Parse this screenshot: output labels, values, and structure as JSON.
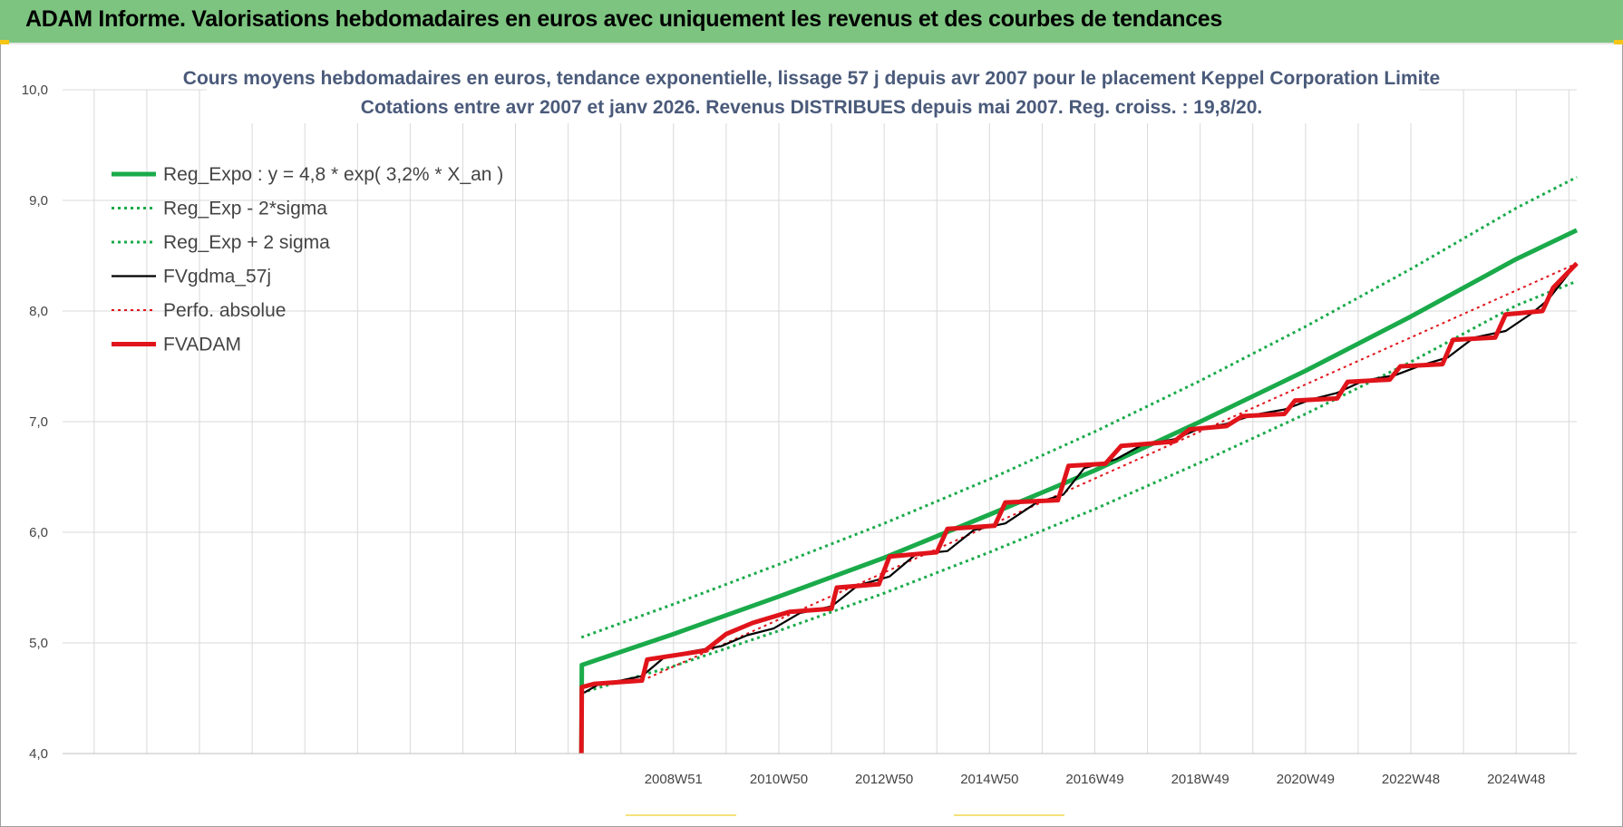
{
  "header": {
    "title": "ADAM Informe. Valorisations hebdomadaires en euros avec uniquement les revenus et des courbes de tendances"
  },
  "colors": {
    "header_bg": "#7cc47f",
    "trend": "#1aaa4a",
    "sigma": "#1aaa4a",
    "smoothed": "#000000",
    "perf": "#e0141a",
    "fvadam": "#e0141a",
    "title_text": "#4a5a7a",
    "grid": "#d9d9d9"
  },
  "chart_data": {
    "type": "line",
    "title_lines": [
      "Cours moyens hebdomadaires en euros, tendance exponentielle, lissage 57 j depuis avr 2007 pour le placement Keppel Corporation Limite",
      "Cotations entre avr 2007 et janv 2026. Revenus DISTRIBUES depuis mai 2007. Reg. croiss. : 19,8/20."
    ],
    "xlabel": "",
    "ylabel": "",
    "ylim": [
      4.0,
      10.0
    ],
    "y_ticks": [
      "4,0",
      "5,0",
      "6,0",
      "7,0",
      "8,0",
      "9,0",
      "10,0"
    ],
    "x_ticks": [
      "2008W51",
      "2010W50",
      "2012W50",
      "2014W50",
      "2016W49",
      "2018W49",
      "2020W49",
      "2022W48",
      "2024W48"
    ],
    "xlim": [
      1997.4,
      2026.15
    ],
    "grid": true,
    "legend_position": "top-left",
    "series": [
      {
        "name": "Reg_Expo : y = 4,8 * exp( 3,2% *  X_an )",
        "style": "solid-thick",
        "color": "#1aaa4a",
        "points": [
          [
            2007.25,
            4.0
          ],
          [
            2007.26,
            4.8
          ],
          [
            2009,
            5.08
          ],
          [
            2011,
            5.42
          ],
          [
            2013,
            5.77
          ],
          [
            2015,
            6.16
          ],
          [
            2017,
            6.56
          ],
          [
            2019,
            7.0
          ],
          [
            2021,
            7.46
          ],
          [
            2023,
            7.95
          ],
          [
            2025,
            8.47
          ],
          [
            2026.15,
            8.73
          ]
        ]
      },
      {
        "name": "Reg_Exp - 2*sigma",
        "style": "dotted",
        "color": "#1aaa4a",
        "points": [
          [
            2007.25,
            4.55
          ],
          [
            2009,
            4.79
          ],
          [
            2011,
            5.11
          ],
          [
            2013,
            5.45
          ],
          [
            2015,
            5.82
          ],
          [
            2017,
            6.21
          ],
          [
            2019,
            6.63
          ],
          [
            2021,
            7.07
          ],
          [
            2023,
            7.54
          ],
          [
            2025,
            8.05
          ],
          [
            2026.15,
            8.27
          ]
        ]
      },
      {
        "name": "Reg_Exp + 2 sigma",
        "style": "dotted",
        "color": "#1aaa4a",
        "points": [
          [
            2007.25,
            5.05
          ],
          [
            2009,
            5.35
          ],
          [
            2011,
            5.71
          ],
          [
            2013,
            6.08
          ],
          [
            2015,
            6.48
          ],
          [
            2017,
            6.91
          ],
          [
            2019,
            7.37
          ],
          [
            2021,
            7.86
          ],
          [
            2023,
            8.38
          ],
          [
            2025,
            8.93
          ],
          [
            2026.15,
            9.21
          ]
        ]
      },
      {
        "name": "FVgdma_57j",
        "style": "solid-thin",
        "color": "#000000",
        "points": [
          [
            2007.3,
            4.55
          ],
          [
            2007.6,
            4.63
          ],
          [
            2008.0,
            4.66
          ],
          [
            2008.4,
            4.7
          ],
          [
            2008.8,
            4.86
          ],
          [
            2009.3,
            4.92
          ],
          [
            2009.9,
            4.97
          ],
          [
            2010.4,
            5.07
          ],
          [
            2010.9,
            5.13
          ],
          [
            2011.4,
            5.27
          ],
          [
            2012.0,
            5.33
          ],
          [
            2012.5,
            5.52
          ],
          [
            2013.1,
            5.6
          ],
          [
            2013.6,
            5.8
          ],
          [
            2014.2,
            5.83
          ],
          [
            2014.7,
            6.02
          ],
          [
            2015.3,
            6.08
          ],
          [
            2015.9,
            6.27
          ],
          [
            2016.4,
            6.34
          ],
          [
            2016.8,
            6.58
          ],
          [
            2017.4,
            6.66
          ],
          [
            2017.9,
            6.79
          ],
          [
            2018.5,
            6.84
          ],
          [
            2019.0,
            6.94
          ],
          [
            2019.5,
            6.98
          ],
          [
            2020.0,
            7.06
          ],
          [
            2020.6,
            7.11
          ],
          [
            2021.1,
            7.2
          ],
          [
            2021.6,
            7.26
          ],
          [
            2022.1,
            7.37
          ],
          [
            2022.7,
            7.42
          ],
          [
            2023.2,
            7.51
          ],
          [
            2023.7,
            7.58
          ],
          [
            2024.2,
            7.76
          ],
          [
            2024.8,
            7.82
          ],
          [
            2025.3,
            7.98
          ],
          [
            2025.6,
            8.1
          ],
          [
            2026.15,
            8.43
          ]
        ]
      },
      {
        "name": "Perfo. absolue",
        "style": "dotted",
        "color": "#e0141a",
        "points": [
          [
            2007.25,
            4.0
          ],
          [
            2007.26,
            4.6
          ],
          [
            2008.5,
            4.68
          ],
          [
            2026.15,
            8.43
          ]
        ]
      },
      {
        "name": "FVADAM",
        "style": "solid-thick",
        "color": "#e0141a",
        "points": [
          [
            2007.25,
            4.0
          ],
          [
            2007.26,
            4.6
          ],
          [
            2007.5,
            4.63
          ],
          [
            2008.4,
            4.66
          ],
          [
            2008.5,
            4.85
          ],
          [
            2009.6,
            4.93
          ],
          [
            2010.0,
            5.08
          ],
          [
            2010.5,
            5.18
          ],
          [
            2011.2,
            5.28
          ],
          [
            2012.0,
            5.31
          ],
          [
            2012.1,
            5.5
          ],
          [
            2012.9,
            5.53
          ],
          [
            2013.1,
            5.78
          ],
          [
            2014.0,
            5.82
          ],
          [
            2014.2,
            6.03
          ],
          [
            2015.1,
            6.06
          ],
          [
            2015.3,
            6.27
          ],
          [
            2016.3,
            6.29
          ],
          [
            2016.5,
            6.6
          ],
          [
            2017.2,
            6.62
          ],
          [
            2017.5,
            6.78
          ],
          [
            2018.5,
            6.82
          ],
          [
            2018.8,
            6.93
          ],
          [
            2019.5,
            6.96
          ],
          [
            2019.8,
            7.05
          ],
          [
            2020.6,
            7.07
          ],
          [
            2020.8,
            7.19
          ],
          [
            2021.6,
            7.21
          ],
          [
            2021.8,
            7.36
          ],
          [
            2022.6,
            7.38
          ],
          [
            2022.8,
            7.5
          ],
          [
            2023.6,
            7.52
          ],
          [
            2023.8,
            7.74
          ],
          [
            2024.6,
            7.76
          ],
          [
            2024.8,
            7.97
          ],
          [
            2025.5,
            8.0
          ],
          [
            2025.7,
            8.21
          ],
          [
            2026.15,
            8.43
          ]
        ]
      }
    ]
  }
}
